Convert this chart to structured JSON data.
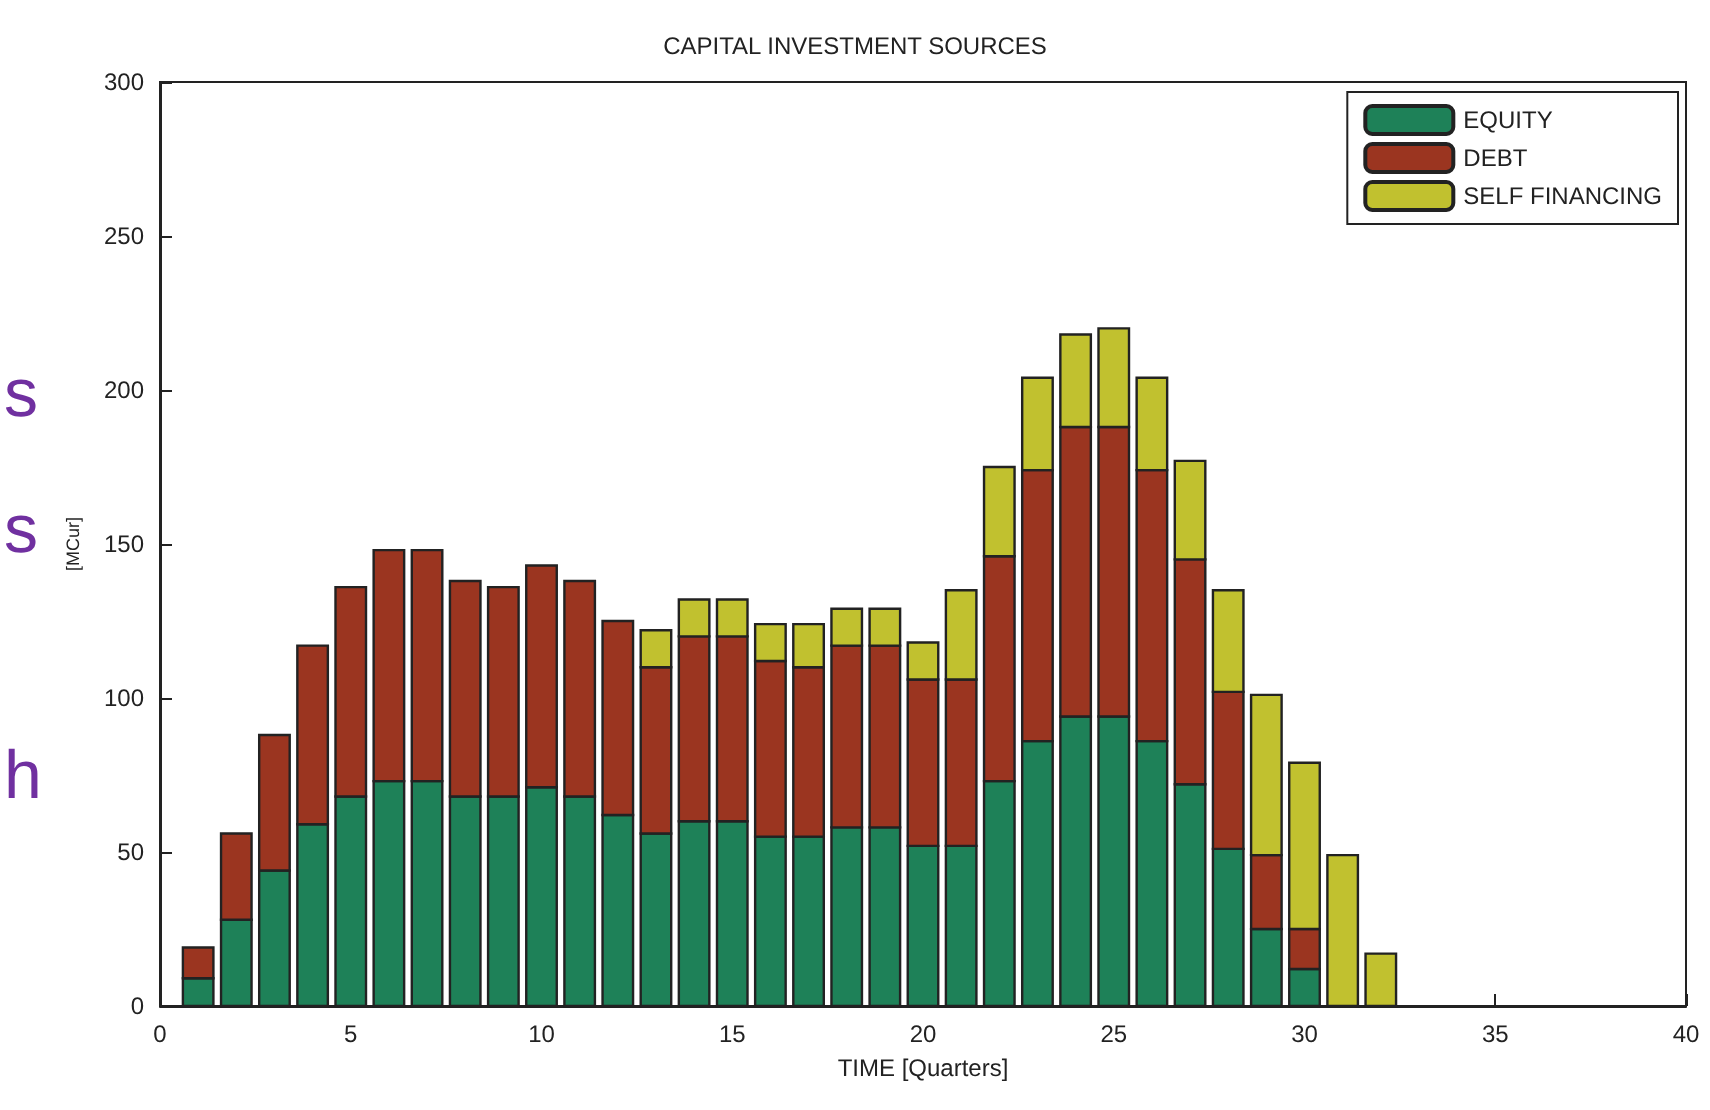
{
  "chart_data": {
    "type": "bar",
    "stacked": true,
    "title": "CAPITAL INVESTMENT SOURCES",
    "xlabel": "TIME [Quarters]",
    "ylabel": "[MCur]",
    "x": [
      1,
      2,
      3,
      4,
      5,
      6,
      7,
      8,
      9,
      10,
      11,
      12,
      13,
      14,
      15,
      16,
      17,
      18,
      19,
      20,
      21,
      22,
      23,
      24,
      25,
      26,
      27,
      28,
      29,
      30,
      31,
      32
    ],
    "series": [
      {
        "name": "EQUITY",
        "color": "#1e8158",
        "values": [
          9,
          28,
          44,
          59,
          68,
          73,
          73,
          68,
          68,
          71,
          68,
          62,
          56,
          60,
          60,
          55,
          55,
          58,
          58,
          52,
          52,
          73,
          86,
          94,
          94,
          86,
          72,
          51,
          25,
          12,
          0,
          0
        ]
      },
      {
        "name": "DEBT",
        "color": "#9b3520",
        "values": [
          10,
          28,
          44,
          58,
          68,
          75,
          75,
          70,
          68,
          72,
          70,
          63,
          54,
          60,
          60,
          57,
          55,
          59,
          59,
          54,
          54,
          73,
          88,
          94,
          94,
          88,
          73,
          51,
          24,
          13,
          0,
          0
        ]
      },
      {
        "name": "SELF FINANCING",
        "color": "#c1c12f",
        "values": [
          0,
          0,
          0,
          0,
          0,
          0,
          0,
          0,
          0,
          0,
          0,
          0,
          12,
          12,
          12,
          12,
          14,
          12,
          12,
          12,
          29,
          29,
          30,
          30,
          32,
          30,
          32,
          33,
          52,
          54,
          49,
          17
        ]
      }
    ],
    "xlim": [
      0,
      40
    ],
    "xticks": [
      0,
      5,
      10,
      15,
      20,
      25,
      30,
      35,
      40
    ],
    "ylim": [
      0,
      300
    ],
    "yticks": [
      0,
      50,
      100,
      150,
      200,
      250,
      300
    ],
    "grid": false,
    "legend": "top right",
    "annotations": [
      "s",
      "s",
      "h"
    ]
  }
}
